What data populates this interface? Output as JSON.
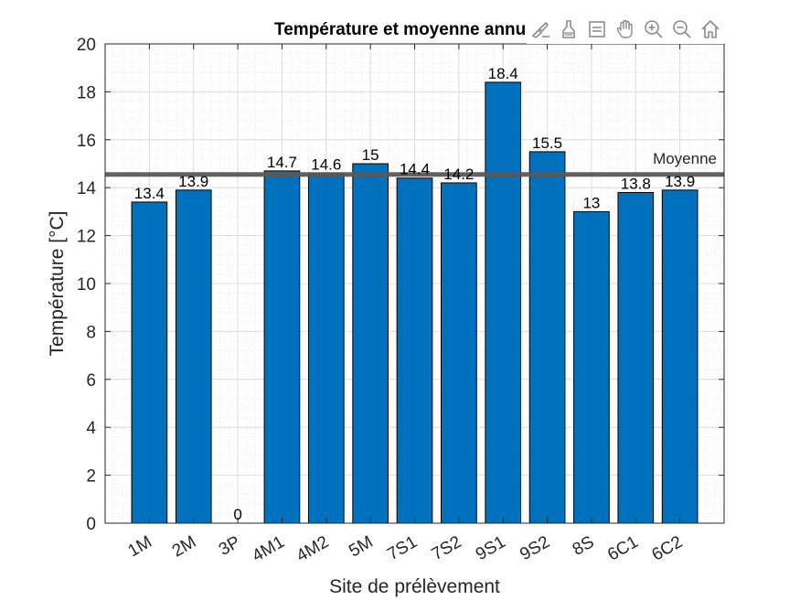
{
  "chart_data": {
    "type": "bar",
    "title": "Température et moyenne annuelle",
    "xlabel": "Site de prélèvement",
    "ylabel": "Température [°C]",
    "categories": [
      "1M",
      "2M",
      "3P",
      "4M1",
      "4M2",
      "5M",
      "7S1",
      "7S2",
      "9S1",
      "9S2",
      "8S",
      "6C1",
      "6C2"
    ],
    "values": [
      13.4,
      13.9,
      0,
      14.7,
      14.6,
      15,
      14.4,
      14.2,
      18.4,
      15.5,
      13,
      13.8,
      13.9
    ],
    "data_labels": [
      "13.4",
      "13.9",
      "0",
      "14.7",
      "14.6",
      "15",
      "14.4",
      "14.2",
      "18.4",
      "15.5",
      "13",
      "13.8",
      "13.9"
    ],
    "ylim": [
      0,
      20
    ],
    "yticks": [
      0,
      2,
      4,
      6,
      8,
      10,
      12,
      14,
      16,
      18,
      20
    ],
    "grid": "on (major and minor)",
    "reference_line": {
      "label": "Moyenne",
      "value": 14.55,
      "color": "#595959"
    },
    "bar_color": "#0072bd"
  },
  "toolbar": {
    "icons": [
      "brush-icon",
      "data-tips-icon",
      "legend-icon",
      "pan-hand-icon",
      "zoom-in-icon",
      "zoom-out-icon",
      "home-icon"
    ]
  }
}
